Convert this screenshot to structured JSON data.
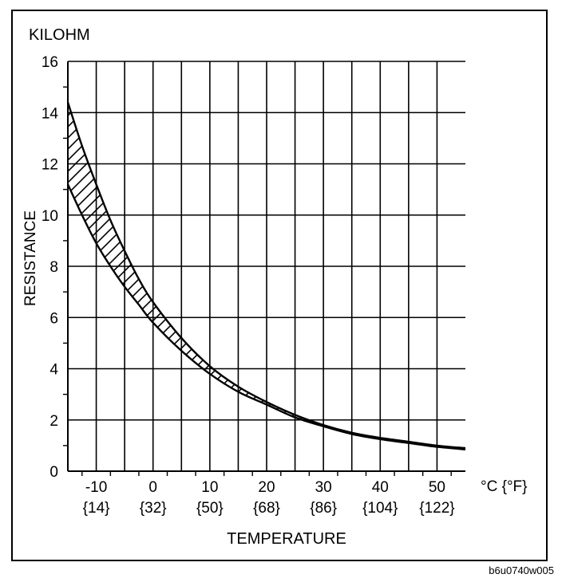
{
  "chart_data": {
    "type": "area",
    "title": "",
    "unit_label": "KILOHM",
    "ylabel": "RESISTANCE",
    "xlabel": "TEMPERATURE",
    "x_unit_label": "°C {°F}",
    "xlim": [
      -15,
      55
    ],
    "ylim": [
      0,
      16
    ],
    "x_ticks": [
      -10,
      0,
      10,
      20,
      30,
      40,
      50
    ],
    "x_tick_labels": [
      "-10",
      "0",
      "10",
      "20",
      "30",
      "40",
      "50"
    ],
    "x_tick_labels_f": [
      "{14}",
      "{32}",
      "{50}",
      "{68}",
      "{86}",
      "{104}",
      "{122}"
    ],
    "y_ticks": [
      0,
      2,
      4,
      6,
      8,
      10,
      12,
      14,
      16
    ],
    "y_tick_labels": [
      "0",
      "2",
      "4",
      "6",
      "8",
      "10",
      "12",
      "14",
      "16"
    ],
    "grid": true,
    "hatched_band": true,
    "series": [
      {
        "x": [
          -15,
          -12.5,
          -10,
          -7.5,
          -5,
          -2.5,
          0,
          5,
          10,
          15,
          20,
          25,
          30,
          35,
          40,
          45,
          50,
          55
        ],
        "values": [
          14.4,
          12.7,
          11.2,
          9.8,
          8.6,
          7.5,
          6.6,
          5.2,
          4.1,
          3.3,
          2.7,
          2.2,
          1.8,
          1.5,
          1.3,
          1.15,
          1.0,
          0.9
        ]
      },
      {
        "x": [
          -15,
          -12.5,
          -10,
          -7.5,
          -5,
          -2.5,
          0,
          5,
          10,
          15,
          20,
          25,
          30,
          35,
          40,
          45,
          50,
          55
        ],
        "values": [
          11.2,
          10.0,
          8.9,
          8.0,
          7.2,
          6.5,
          5.8,
          4.7,
          3.8,
          3.1,
          2.6,
          2.1,
          1.75,
          1.45,
          1.25,
          1.1,
          0.95,
          0.85
        ]
      }
    ]
  },
  "figure_code": "b6u0740w005"
}
